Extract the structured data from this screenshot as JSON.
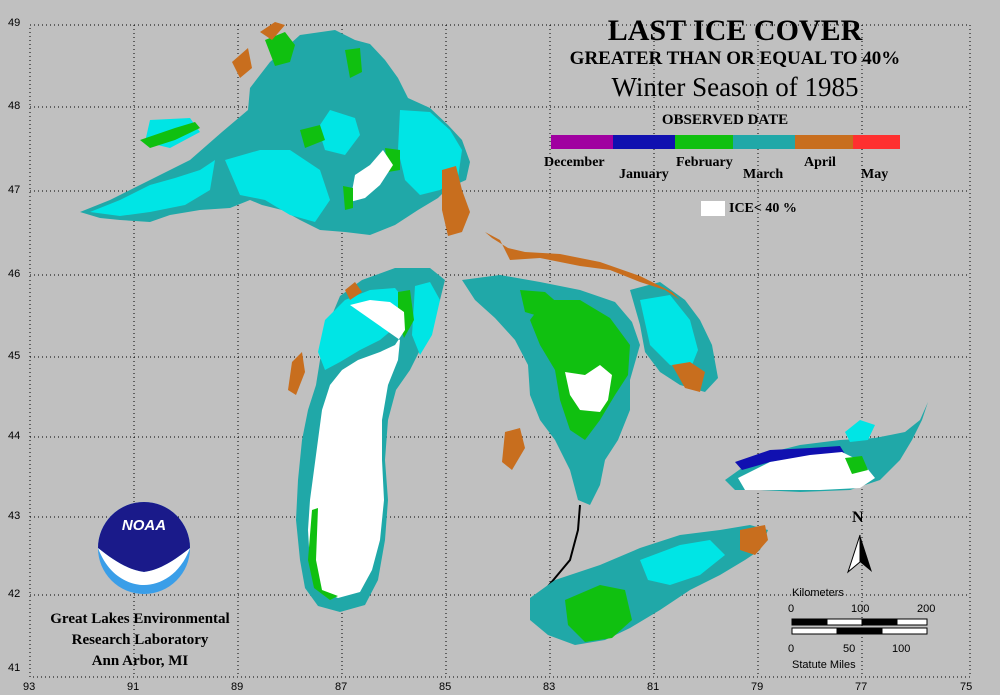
{
  "title": {
    "line1": "LAST ICE COVER",
    "line2": "GREATER THAN OR EQUAL TO 40%",
    "line3": "Winter Season of 1985"
  },
  "legend": {
    "heading": "OBSERVED DATE",
    "months": [
      "December",
      "January",
      "February",
      "March",
      "April",
      "May"
    ],
    "ice_label": "ICE< 40 %",
    "colors": {
      "december": "#a000a0",
      "january": "#1010b0",
      "february": "#10c010",
      "march": "#20a8a8",
      "april": "#c86e1e",
      "may": "#ff3030",
      "ice_lt_40": "#ffffff",
      "land": "#c0c0c0"
    }
  },
  "latitude_ticks": [
    "49",
    "48",
    "47",
    "46",
    "45",
    "44",
    "43",
    "42",
    "41"
  ],
  "longitude_ticks": [
    "93",
    "91",
    "89",
    "87",
    "85",
    "83",
    "81",
    "79",
    "77",
    "75"
  ],
  "north_arrow": {
    "label": "N"
  },
  "scale_bar": {
    "km_title": "Kilometers",
    "km_ticks": [
      "0",
      "100",
      "200"
    ],
    "mi_ticks": [
      "0",
      "50",
      "100"
    ],
    "mi_title": "Statute Miles"
  },
  "logo": {
    "text": "NOAA"
  },
  "organization": [
    "Great Lakes Environmental",
    "Research Laboratory",
    "Ann Arbor, MI"
  ]
}
